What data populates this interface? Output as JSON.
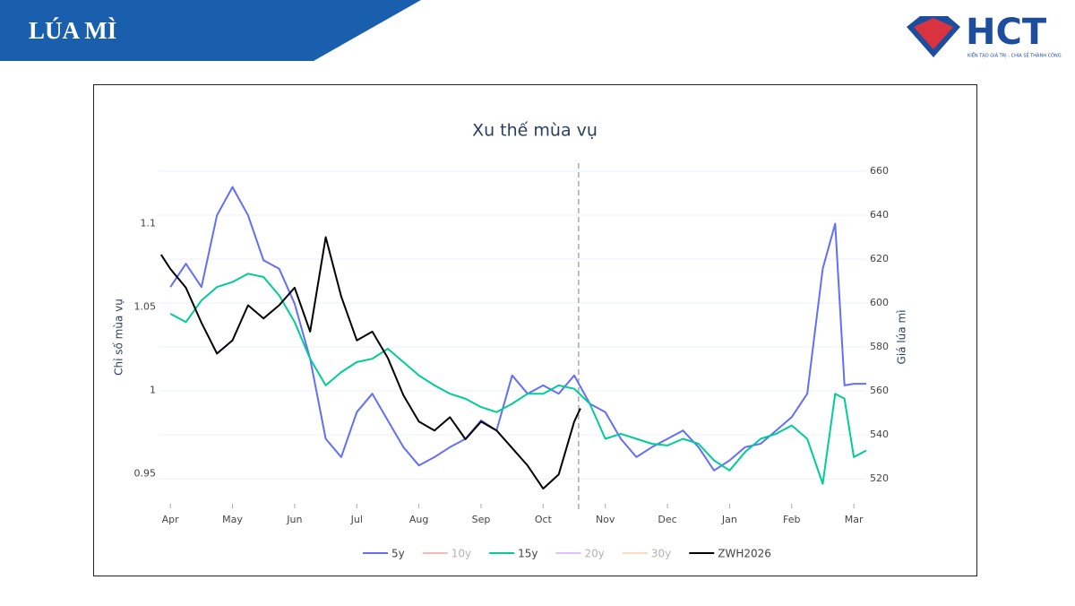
{
  "header": {
    "title": "LÚA MÌ",
    "logo": "HCT",
    "tagline": "KIẾN TẠO GIÁ TRỊ - CHIA SẺ THÀNH CÔNG"
  },
  "chart_data": {
    "type": "line",
    "title": "Xu thế mùa vụ",
    "y_label": "Chỉ số mùa vụ",
    "y2_label": "Giá lúa mì",
    "xlim": [
      -0.19,
      11.2
    ],
    "xticks": [
      {
        "value": 0,
        "label": "Apr"
      },
      {
        "value": 1,
        "label": "May"
      },
      {
        "value": 2,
        "label": "Jun"
      },
      {
        "value": 3,
        "label": "Jul"
      },
      {
        "value": 4,
        "label": "Aug"
      },
      {
        "value": 5,
        "label": "Sep"
      },
      {
        "value": 6,
        "label": "Oct"
      },
      {
        "value": 7,
        "label": "Nov"
      },
      {
        "value": 8,
        "label": "Dec"
      },
      {
        "value": 9,
        "label": "Jan"
      },
      {
        "value": 10,
        "label": "Feb"
      },
      {
        "value": 11,
        "label": "Mar"
      }
    ],
    "ylim": [
      0.932,
      1.132
    ],
    "yticks": [
      0.95,
      1,
      1.05,
      1.1
    ],
    "y2lim": [
      508.6,
      660.4
    ],
    "y2ticks": [
      520,
      540,
      560,
      580,
      600,
      620,
      640,
      660
    ],
    "grid": true,
    "vline_x": 6.57,
    "legend": "bottom",
    "series": [
      {
        "name": "5y",
        "color": "#636efa",
        "visible": true,
        "x": [
          0,
          0.25,
          0.5,
          0.75,
          1,
          1.25,
          1.5,
          1.75,
          2,
          2.25,
          2.5,
          2.75,
          3,
          3.25,
          3.5,
          3.75,
          4,
          4.25,
          4.5,
          4.75,
          5,
          5.25,
          5.5,
          5.75,
          6,
          6.25,
          6.5,
          6.75,
          7,
          7.25,
          7.5,
          7.75,
          8,
          8.25,
          8.5,
          8.75,
          9,
          9.25,
          9.5,
          9.75,
          10,
          10.25,
          10.5,
          10.7,
          10.85,
          11,
          11.2
        ],
        "values": [
          1.062,
          1.076,
          1.062,
          1.105,
          1.122,
          1.105,
          1.078,
          1.073,
          1.052,
          1.019,
          0.971,
          0.96,
          0.987,
          0.998,
          0.982,
          0.966,
          0.955,
          0.96,
          0.966,
          0.971,
          0.982,
          0.976,
          1.009,
          0.998,
          1.003,
          0.998,
          1.009,
          0.992,
          0.987,
          0.971,
          0.96,
          0.966,
          0.971,
          0.976,
          0.966,
          0.952,
          0.958,
          0.966,
          0.968,
          0.976,
          0.984,
          0.998,
          1.073,
          1.1,
          1.003,
          1.004,
          1.004
        ]
      },
      {
        "name": "10y",
        "color": "#ef553b",
        "visible": false
      },
      {
        "name": "15y",
        "color": "#00cc96",
        "visible": true,
        "x": [
          0,
          0.25,
          0.5,
          0.75,
          1,
          1.25,
          1.5,
          1.75,
          2,
          2.25,
          2.5,
          2.75,
          3,
          3.25,
          3.5,
          3.75,
          4,
          4.25,
          4.5,
          4.75,
          5,
          5.25,
          5.5,
          5.75,
          6,
          6.25,
          6.5,
          6.75,
          7,
          7.25,
          7.5,
          7.75,
          8,
          8.25,
          8.5,
          8.75,
          9,
          9.25,
          9.5,
          9.75,
          10,
          10.25,
          10.5,
          10.7,
          10.85,
          11,
          11.2
        ],
        "values": [
          1.046,
          1.041,
          1.054,
          1.062,
          1.065,
          1.07,
          1.068,
          1.057,
          1.041,
          1.019,
          1.003,
          1.011,
          1.017,
          1.019,
          1.025,
          1.017,
          1.009,
          1.003,
          0.998,
          0.995,
          0.99,
          0.987,
          0.992,
          0.998,
          0.998,
          1.003,
          1.001,
          0.992,
          0.971,
          0.974,
          0.971,
          0.968,
          0.967,
          0.971,
          0.968,
          0.958,
          0.952,
          0.963,
          0.971,
          0.974,
          0.979,
          0.971,
          0.944,
          0.998,
          0.995,
          0.96,
          0.964
        ]
      },
      {
        "name": "20y",
        "color": "#ab63fa",
        "visible": false
      },
      {
        "name": "30y",
        "color": "#ffa15a",
        "visible": false
      },
      {
        "name": "ZWH2026",
        "color": "#000000",
        "visible": true,
        "axis": "y2",
        "x": [
          -0.15,
          0,
          0.25,
          0.5,
          0.75,
          1,
          1.25,
          1.5,
          1.75,
          2,
          2.25,
          2.5,
          2.75,
          3,
          3.25,
          3.5,
          3.75,
          4,
          4.25,
          4.5,
          4.75,
          5,
          5.25,
          5.5,
          5.75,
          6,
          6.25,
          6.5,
          6.6
        ],
        "values": [
          622,
          615.5,
          607,
          591,
          577,
          583,
          599,
          593,
          599,
          607,
          587,
          630,
          603,
          583,
          587,
          575,
          558,
          546,
          542,
          548,
          538,
          546,
          542,
          534,
          526,
          515.5,
          522,
          546,
          552
        ]
      }
    ]
  }
}
